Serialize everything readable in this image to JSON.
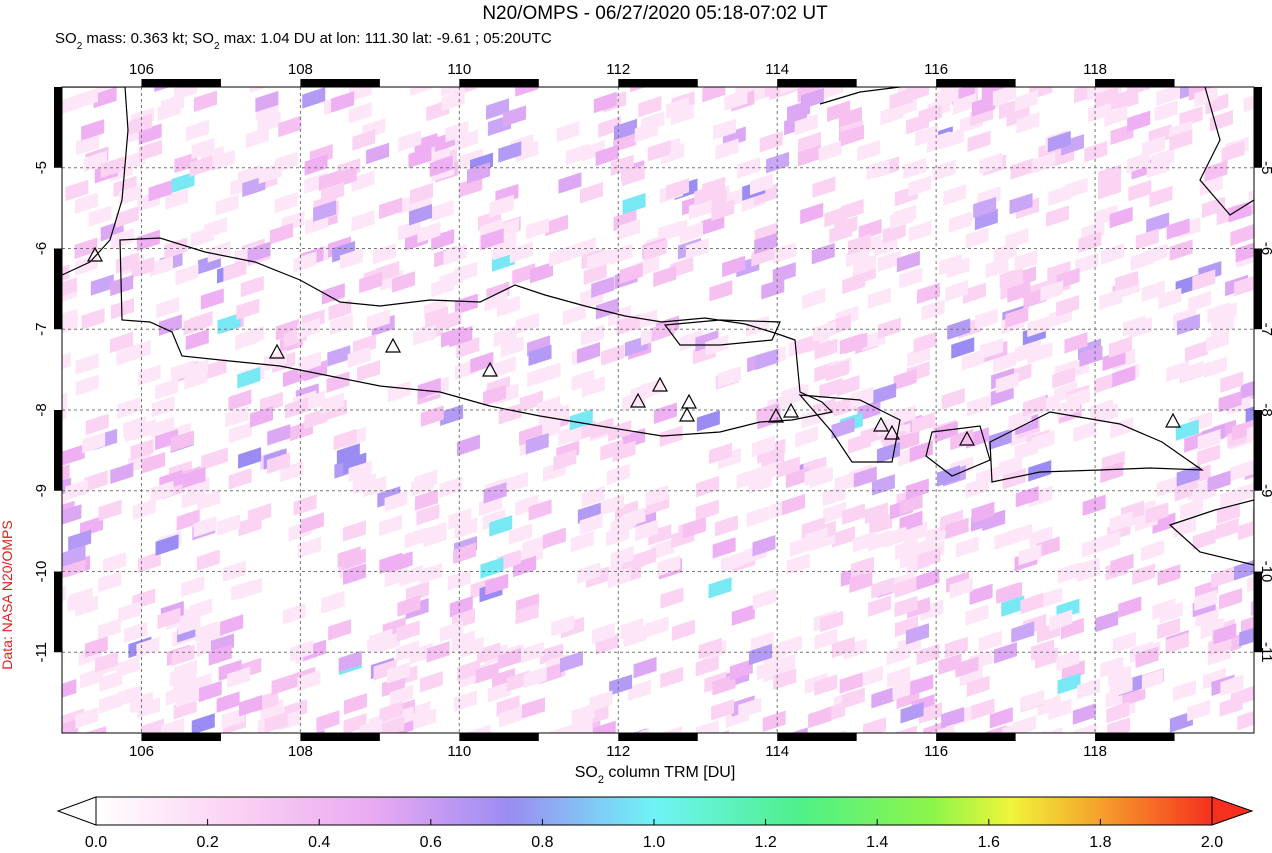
{
  "title": "N20/OMPS - 06/27/2020 05:18-07:02 UT",
  "subtitle": [
    "SO",
    "2",
    " mass: 0.363 kt; SO",
    "2",
    " max: 1.04 DU at lon: 111.30 lat: -9.61 ; 05:20UTC"
  ],
  "credit": "Data: NASA N20/OMPS",
  "map": {
    "xlim": [
      105,
      120
    ],
    "ylim": [
      -12,
      -4
    ],
    "xticks": [
      106,
      108,
      110,
      112,
      114,
      116,
      118
    ],
    "yticks": [
      -5,
      -6,
      -7,
      -8,
      -9,
      -10,
      -11
    ]
  },
  "colorbar": {
    "label": [
      "SO",
      "2",
      " column TRM [DU]"
    ],
    "lim": [
      0,
      2
    ],
    "ticks": [
      {
        "value": 0,
        "label": "0.0"
      },
      {
        "value": 0.2,
        "label": "0.2"
      },
      {
        "value": 0.4,
        "label": "0.4"
      },
      {
        "value": 0.6,
        "label": "0.6"
      },
      {
        "value": 0.8,
        "label": "0.8"
      },
      {
        "value": 1,
        "label": "1.0"
      },
      {
        "value": 1.2,
        "label": "1.2"
      },
      {
        "value": 1.4,
        "label": "1.4"
      },
      {
        "value": 1.6,
        "label": "1.6"
      },
      {
        "value": 1.8,
        "label": "1.8"
      },
      {
        "value": 2,
        "label": "2.0"
      }
    ]
  }
}
